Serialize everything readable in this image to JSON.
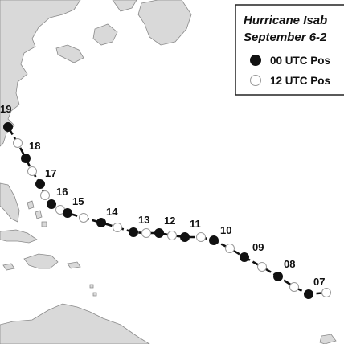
{
  "legend": {
    "title_line1": "Hurricane Isab",
    "title_line2": "September 6-2",
    "item_00utc": "00 UTC Pos",
    "item_12utc": "12 UTC Pos"
  },
  "colors": {
    "ocean": "#ffffff",
    "land": "#d9d9d9",
    "coastline": "#8a8a8a",
    "track": "#111111",
    "dot_00utc": "#111111",
    "dot_12utc": "#ffffff"
  },
  "track": {
    "day_labels": [
      "19",
      "18",
      "17",
      "16",
      "15",
      "14",
      "13",
      "12",
      "11",
      "10",
      "09",
      "08",
      "07"
    ],
    "positions": [
      {
        "day": "19",
        "type": "00"
      },
      {
        "day": "18",
        "type": "12"
      },
      {
        "day": "18",
        "type": "00"
      },
      {
        "day": "17",
        "type": "12"
      },
      {
        "day": "17",
        "type": "00"
      },
      {
        "day": "16",
        "type": "12"
      },
      {
        "day": "16",
        "type": "00"
      },
      {
        "day": "15",
        "type": "12"
      },
      {
        "day": "15",
        "type": "00"
      },
      {
        "day": "14",
        "type": "12"
      },
      {
        "day": "14",
        "type": "00"
      },
      {
        "day": "13",
        "type": "12"
      },
      {
        "day": "13",
        "type": "00"
      },
      {
        "day": "12",
        "type": "12"
      },
      {
        "day": "12",
        "type": "00"
      },
      {
        "day": "11",
        "type": "12"
      },
      {
        "day": "11",
        "type": "00"
      },
      {
        "day": "10",
        "type": "12"
      },
      {
        "day": "10",
        "type": "00"
      },
      {
        "day": "09",
        "type": "12"
      },
      {
        "day": "09",
        "type": "00"
      },
      {
        "day": "08",
        "type": "12"
      },
      {
        "day": "08",
        "type": "00"
      },
      {
        "day": "07",
        "type": "12"
      },
      {
        "day": "07",
        "type": "00"
      },
      {
        "day": "06",
        "type": "12"
      }
    ]
  }
}
